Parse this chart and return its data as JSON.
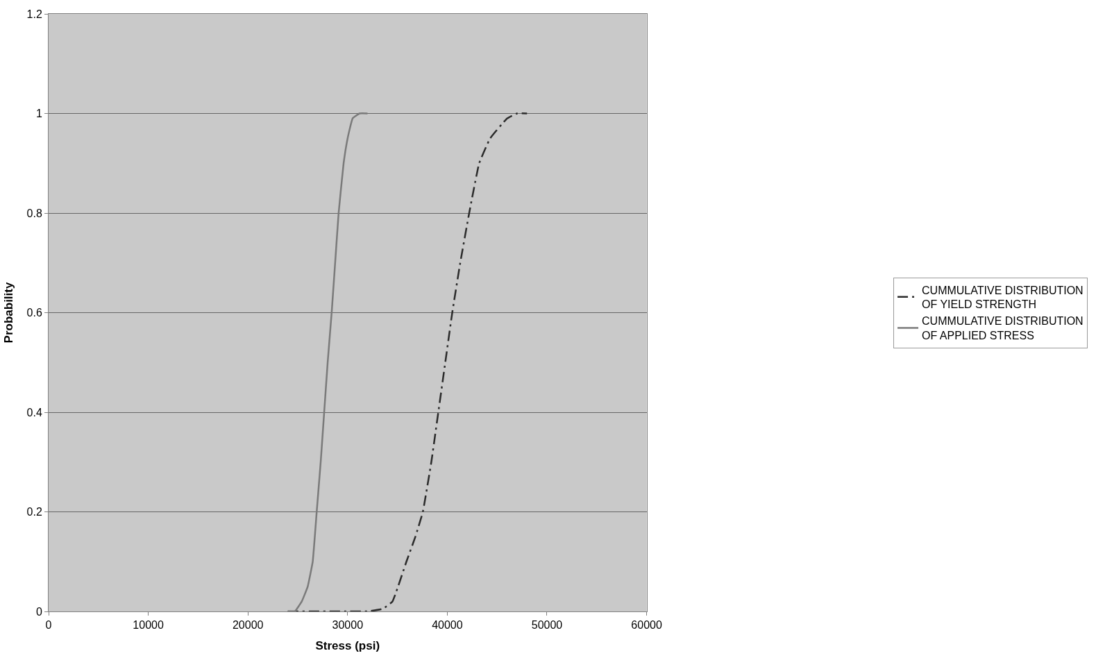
{
  "chart_data": {
    "type": "line",
    "xlabel": "Stress (psi)",
    "ylabel": "Probability",
    "xlim": [
      0,
      60000
    ],
    "xticks": [
      0,
      10000,
      20000,
      30000,
      40000,
      50000,
      60000
    ],
    "ylim": [
      0,
      1.2
    ],
    "yticks": [
      0,
      0.2,
      0.4,
      0.6,
      0.8,
      1,
      1.2
    ],
    "grid": "y",
    "legend": "right",
    "marker": "none",
    "series": [
      {
        "name": "CUMMULATIVE DISTRIBUTION OF YIELD STRENGTH",
        "color": "#2b2b2b",
        "line_style": "dashed",
        "x": [
          24000,
          30000,
          32000,
          33500,
          34500,
          35900,
          36800,
          37550,
          38400,
          39100,
          39800,
          40500,
          41300,
          42200,
          43200,
          44300,
          46000,
          47000,
          48000
        ],
        "values": [
          0,
          0,
          0,
          0.005,
          0.02,
          0.1,
          0.15,
          0.2,
          0.3,
          0.4,
          0.5,
          0.6,
          0.7,
          0.8,
          0.9,
          0.95,
          0.99,
          1,
          1
        ]
      },
      {
        "name": "CUMMULATIVE DISTRIBUTION OF APPLIED STRESS",
        "color": "#7a7a7a",
        "line_style": "solid",
        "x": [
          24000,
          24700,
          25400,
          26000,
          26500,
          26900,
          27300,
          27650,
          28000,
          28400,
          28750,
          29100,
          29600,
          30000,
          30500,
          31200,
          32000
        ],
        "values": [
          0,
          0,
          0.02,
          0.05,
          0.1,
          0.2,
          0.3,
          0.4,
          0.5,
          0.6,
          0.7,
          0.8,
          0.9,
          0.95,
          0.99,
          1,
          1
        ]
      }
    ]
  }
}
